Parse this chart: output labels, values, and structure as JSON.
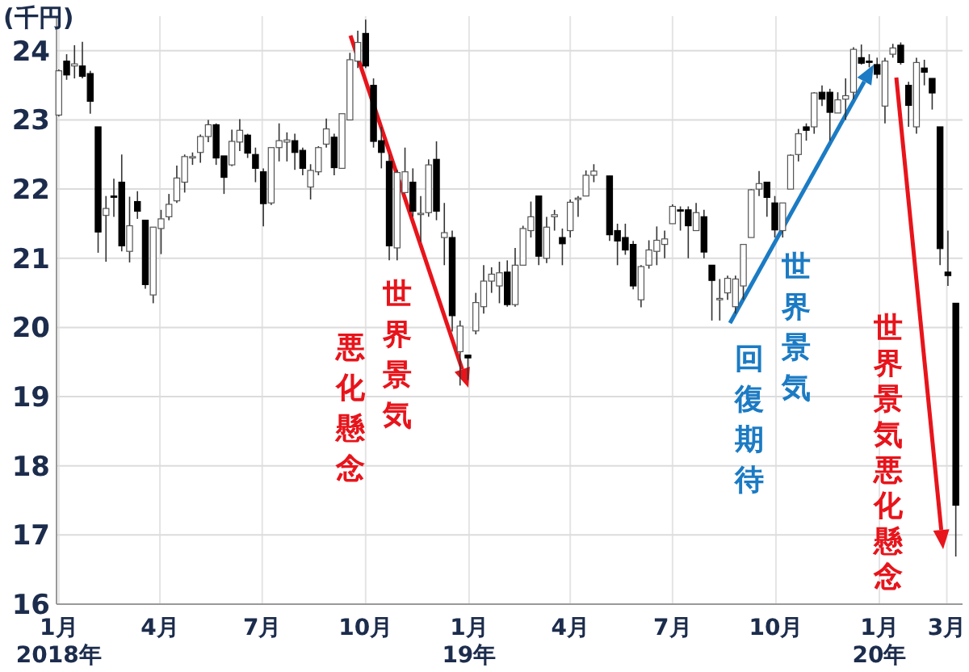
{
  "chart_data": {
    "type": "candlestick",
    "ylabel": "(千円)",
    "xlim": [
      "2017-12-30",
      "2020-03-15"
    ],
    "xticks": [
      {
        "value": "2018-01-01",
        "label": "1月\n2018年"
      },
      {
        "value": "2018-04-01",
        "label": "4月"
      },
      {
        "value": "2018-07-01",
        "label": "7月"
      },
      {
        "value": "2018-10-01",
        "label": "10月"
      },
      {
        "value": "2019-01-01",
        "label": "1月\n19年"
      },
      {
        "value": "2019-04-01",
        "label": "4月"
      },
      {
        "value": "2019-07-01",
        "label": "7月"
      },
      {
        "value": "2019-10-01",
        "label": "10月"
      },
      {
        "value": "2020-01-01",
        "label": "1月\n20年"
      },
      {
        "value": "2020-03-01",
        "label": "3月"
      }
    ],
    "ylim": [
      16,
      24.5
    ],
    "yticks": [
      16,
      17,
      18,
      19,
      20,
      21,
      22,
      23,
      24
    ],
    "grid": true,
    "x": [
      "2018-01-01",
      "2018-01-08",
      "2018-01-15",
      "2018-01-22",
      "2018-01-29",
      "2018-02-05",
      "2018-02-12",
      "2018-02-19",
      "2018-02-26",
      "2018-03-05",
      "2018-03-12",
      "2018-03-19",
      "2018-03-26",
      "2018-04-02",
      "2018-04-09",
      "2018-04-16",
      "2018-04-23",
      "2018-04-30",
      "2018-05-07",
      "2018-05-14",
      "2018-05-21",
      "2018-05-28",
      "2018-06-04",
      "2018-06-11",
      "2018-06-18",
      "2018-06-25",
      "2018-07-02",
      "2018-07-09",
      "2018-07-16",
      "2018-07-23",
      "2018-07-30",
      "2018-08-06",
      "2018-08-13",
      "2018-08-20",
      "2018-08-27",
      "2018-09-03",
      "2018-09-10",
      "2018-09-17",
      "2018-09-24",
      "2018-10-01",
      "2018-10-08",
      "2018-10-15",
      "2018-10-22",
      "2018-10-29",
      "2018-11-05",
      "2018-11-12",
      "2018-11-19",
      "2018-11-26",
      "2018-12-03",
      "2018-12-10",
      "2018-12-17",
      "2018-12-24",
      "2018-12-31",
      "2019-01-07",
      "2019-01-14",
      "2019-01-21",
      "2019-01-28",
      "2019-02-04",
      "2019-02-11",
      "2019-02-18",
      "2019-02-25",
      "2019-03-04",
      "2019-03-11",
      "2019-03-18",
      "2019-03-25",
      "2019-04-01",
      "2019-04-08",
      "2019-04-15",
      "2019-04-22",
      "2019-05-06",
      "2019-05-13",
      "2019-05-20",
      "2019-05-27",
      "2019-06-03",
      "2019-06-10",
      "2019-06-17",
      "2019-06-24",
      "2019-07-01",
      "2019-07-08",
      "2019-07-15",
      "2019-07-22",
      "2019-07-29",
      "2019-08-05",
      "2019-08-12",
      "2019-08-19",
      "2019-08-26",
      "2019-09-02",
      "2019-09-09",
      "2019-09-16",
      "2019-09-23",
      "2019-09-30",
      "2019-10-07",
      "2019-10-14",
      "2019-10-21",
      "2019-10-28",
      "2019-11-04",
      "2019-11-11",
      "2019-11-18",
      "2019-11-25",
      "2019-12-02",
      "2019-12-09",
      "2019-12-16",
      "2019-12-23",
      "2019-12-30",
      "2020-01-06",
      "2020-01-13",
      "2020-01-20",
      "2020-01-27",
      "2020-02-03",
      "2020-02-10",
      "2020-02-17",
      "2020-02-24",
      "2020-03-02",
      "2020-03-09"
    ],
    "ohlc": [
      [
        23.07,
        23.73,
        23.05,
        23.71
      ],
      [
        23.85,
        23.95,
        23.58,
        23.65
      ],
      [
        23.78,
        24.08,
        23.6,
        23.81
      ],
      [
        23.78,
        24.13,
        23.6,
        23.63
      ],
      [
        23.67,
        23.71,
        23.09,
        23.27
      ],
      [
        22.9,
        22.9,
        21.08,
        21.38
      ],
      [
        21.62,
        21.9,
        20.95,
        21.72
      ],
      [
        21.9,
        22.15,
        21.6,
        21.89
      ],
      [
        22.1,
        22.5,
        21.1,
        21.18
      ],
      [
        21.1,
        21.89,
        20.94,
        21.47
      ],
      [
        21.82,
        21.97,
        21.57,
        21.68
      ],
      [
        21.55,
        21.55,
        20.56,
        20.62
      ],
      [
        20.47,
        21.45,
        20.35,
        21.45
      ],
      [
        21.43,
        21.7,
        21.06,
        21.57
      ],
      [
        21.6,
        21.93,
        21.55,
        21.78
      ],
      [
        21.83,
        22.34,
        21.8,
        22.16
      ],
      [
        22.1,
        22.5,
        21.95,
        22.47
      ],
      [
        22.45,
        22.53,
        22.35,
        22.47
      ],
      [
        22.53,
        22.79,
        22.38,
        22.76
      ],
      [
        22.76,
        23.0,
        22.68,
        22.93
      ],
      [
        22.93,
        22.95,
        22.35,
        22.45
      ],
      [
        22.48,
        22.48,
        21.93,
        22.17
      ],
      [
        22.35,
        22.86,
        22.33,
        22.69
      ],
      [
        22.68,
        23.01,
        22.55,
        22.85
      ],
      [
        22.78,
        22.8,
        22.45,
        22.52
      ],
      [
        22.5,
        22.6,
        22.1,
        22.3
      ],
      [
        22.25,
        22.3,
        21.46,
        21.79
      ],
      [
        21.8,
        22.6,
        21.77,
        22.6
      ],
      [
        22.6,
        22.95,
        22.4,
        22.7
      ],
      [
        22.68,
        22.82,
        22.4,
        22.71
      ],
      [
        22.7,
        22.8,
        22.28,
        22.53
      ],
      [
        22.56,
        22.6,
        22.2,
        22.3
      ],
      [
        22.03,
        22.36,
        21.85,
        22.27
      ],
      [
        22.25,
        22.62,
        22.2,
        22.6
      ],
      [
        22.65,
        23.02,
        22.6,
        22.87
      ],
      [
        22.75,
        22.8,
        22.2,
        22.31
      ],
      [
        22.3,
        23.09,
        22.3,
        23.09
      ],
      [
        23.0,
        23.97,
        23.0,
        23.87
      ],
      [
        23.85,
        24.29,
        23.75,
        24.12
      ],
      [
        24.25,
        24.45,
        23.75,
        23.78
      ],
      [
        23.5,
        23.6,
        22.6,
        22.69
      ],
      [
        22.7,
        22.9,
        22.3,
        22.53
      ],
      [
        22.4,
        22.5,
        20.97,
        21.18
      ],
      [
        21.15,
        22.28,
        20.97,
        22.24
      ],
      [
        21.95,
        22.6,
        21.95,
        22.25
      ],
      [
        22.1,
        22.3,
        21.6,
        21.68
      ],
      [
        21.65,
        21.9,
        21.24,
        21.65
      ],
      [
        21.66,
        22.43,
        21.6,
        22.35
      ],
      [
        22.43,
        22.69,
        21.55,
        21.68
      ],
      [
        21.3,
        21.8,
        20.9,
        21.37
      ],
      [
        21.3,
        21.4,
        19.94,
        20.17
      ],
      [
        19.65,
        20.1,
        19.16,
        20.02
      ],
      [
        19.6,
        19.6,
        19.24,
        19.56
      ],
      [
        19.95,
        20.5,
        19.9,
        20.36
      ],
      [
        20.3,
        20.9,
        20.2,
        20.67
      ],
      [
        20.67,
        20.87,
        20.5,
        20.77
      ],
      [
        20.6,
        20.95,
        20.35,
        20.79
      ],
      [
        20.8,
        20.97,
        20.3,
        20.33
      ],
      [
        20.33,
        21.15,
        20.3,
        20.9
      ],
      [
        20.9,
        21.47,
        20.9,
        21.43
      ],
      [
        21.4,
        21.82,
        21.3,
        21.6
      ],
      [
        21.9,
        21.9,
        20.9,
        21.03
      ],
      [
        21.0,
        21.6,
        20.93,
        21.45
      ],
      [
        21.6,
        21.7,
        21.4,
        21.63
      ],
      [
        21.3,
        21.43,
        20.9,
        21.21
      ],
      [
        21.4,
        21.85,
        21.3,
        21.81
      ],
      [
        21.85,
        21.9,
        21.6,
        21.87
      ],
      [
        21.9,
        22.27,
        21.9,
        22.2
      ],
      [
        22.2,
        22.36,
        22.1,
        22.26
      ],
      [
        22.19,
        22.19,
        21.25,
        21.34
      ],
      [
        21.4,
        21.5,
        20.9,
        21.25
      ],
      [
        21.3,
        21.5,
        21.05,
        21.12
      ],
      [
        21.2,
        21.25,
        20.55,
        20.6
      ],
      [
        20.4,
        20.9,
        20.29,
        20.88
      ],
      [
        20.9,
        21.26,
        20.85,
        21.12
      ],
      [
        21.1,
        21.46,
        20.9,
        21.26
      ],
      [
        21.2,
        21.4,
        21.0,
        21.28
      ],
      [
        21.5,
        21.78,
        21.5,
        21.75
      ],
      [
        21.7,
        21.75,
        21.4,
        21.69
      ],
      [
        21.7,
        21.75,
        21.0,
        21.47
      ],
      [
        21.4,
        21.8,
        21.4,
        21.66
      ],
      [
        21.6,
        21.7,
        21.0,
        21.09
      ],
      [
        20.9,
        20.9,
        20.1,
        20.68
      ],
      [
        20.4,
        20.7,
        20.1,
        20.42
      ],
      [
        20.5,
        20.75,
        20.4,
        20.71
      ],
      [
        20.3,
        20.75,
        20.2,
        20.7
      ],
      [
        20.6,
        21.2,
        20.4,
        21.2
      ],
      [
        21.3,
        22.0,
        21.3,
        21.99
      ],
      [
        22.0,
        22.26,
        21.9,
        22.08
      ],
      [
        22.1,
        22.1,
        21.6,
        21.88
      ],
      [
        21.8,
        21.9,
        21.3,
        21.41
      ],
      [
        21.4,
        21.8,
        21.3,
        21.8
      ],
      [
        22.0,
        22.5,
        22.0,
        22.49
      ],
      [
        22.5,
        22.87,
        22.4,
        22.8
      ],
      [
        22.9,
        22.95,
        22.7,
        22.85
      ],
      [
        22.9,
        23.4,
        22.8,
        23.39
      ],
      [
        23.4,
        23.5,
        23.2,
        23.3
      ],
      [
        23.4,
        23.45,
        22.7,
        23.11
      ],
      [
        23.1,
        23.4,
        23.1,
        23.29
      ],
      [
        23.3,
        23.6,
        23.0,
        23.35
      ],
      [
        23.4,
        24.05,
        23.3,
        24.02
      ],
      [
        23.9,
        24.09,
        23.8,
        23.82
      ],
      [
        23.85,
        23.95,
        23.76,
        23.84
      ],
      [
        23.8,
        23.9,
        23.6,
        23.66
      ],
      [
        23.2,
        23.9,
        22.95,
        23.85
      ],
      [
        23.95,
        24.1,
        23.9,
        24.04
      ],
      [
        24.08,
        24.12,
        23.8,
        23.83
      ],
      [
        23.5,
        23.55,
        22.9,
        23.21
      ],
      [
        22.9,
        23.9,
        22.8,
        23.83
      ],
      [
        23.75,
        23.87,
        23.5,
        23.69
      ],
      [
        23.6,
        23.6,
        23.15,
        23.39
      ],
      [
        22.9,
        22.9,
        20.9,
        21.14
      ],
      [
        20.8,
        21.4,
        20.6,
        20.75
      ],
      [
        20.35,
        20.35,
        16.69,
        17.43
      ]
    ],
    "annotations": [
      "世界景気悪化懸念",
      "世界景気回復期待",
      "世界景気悪化懸念"
    ]
  }
}
